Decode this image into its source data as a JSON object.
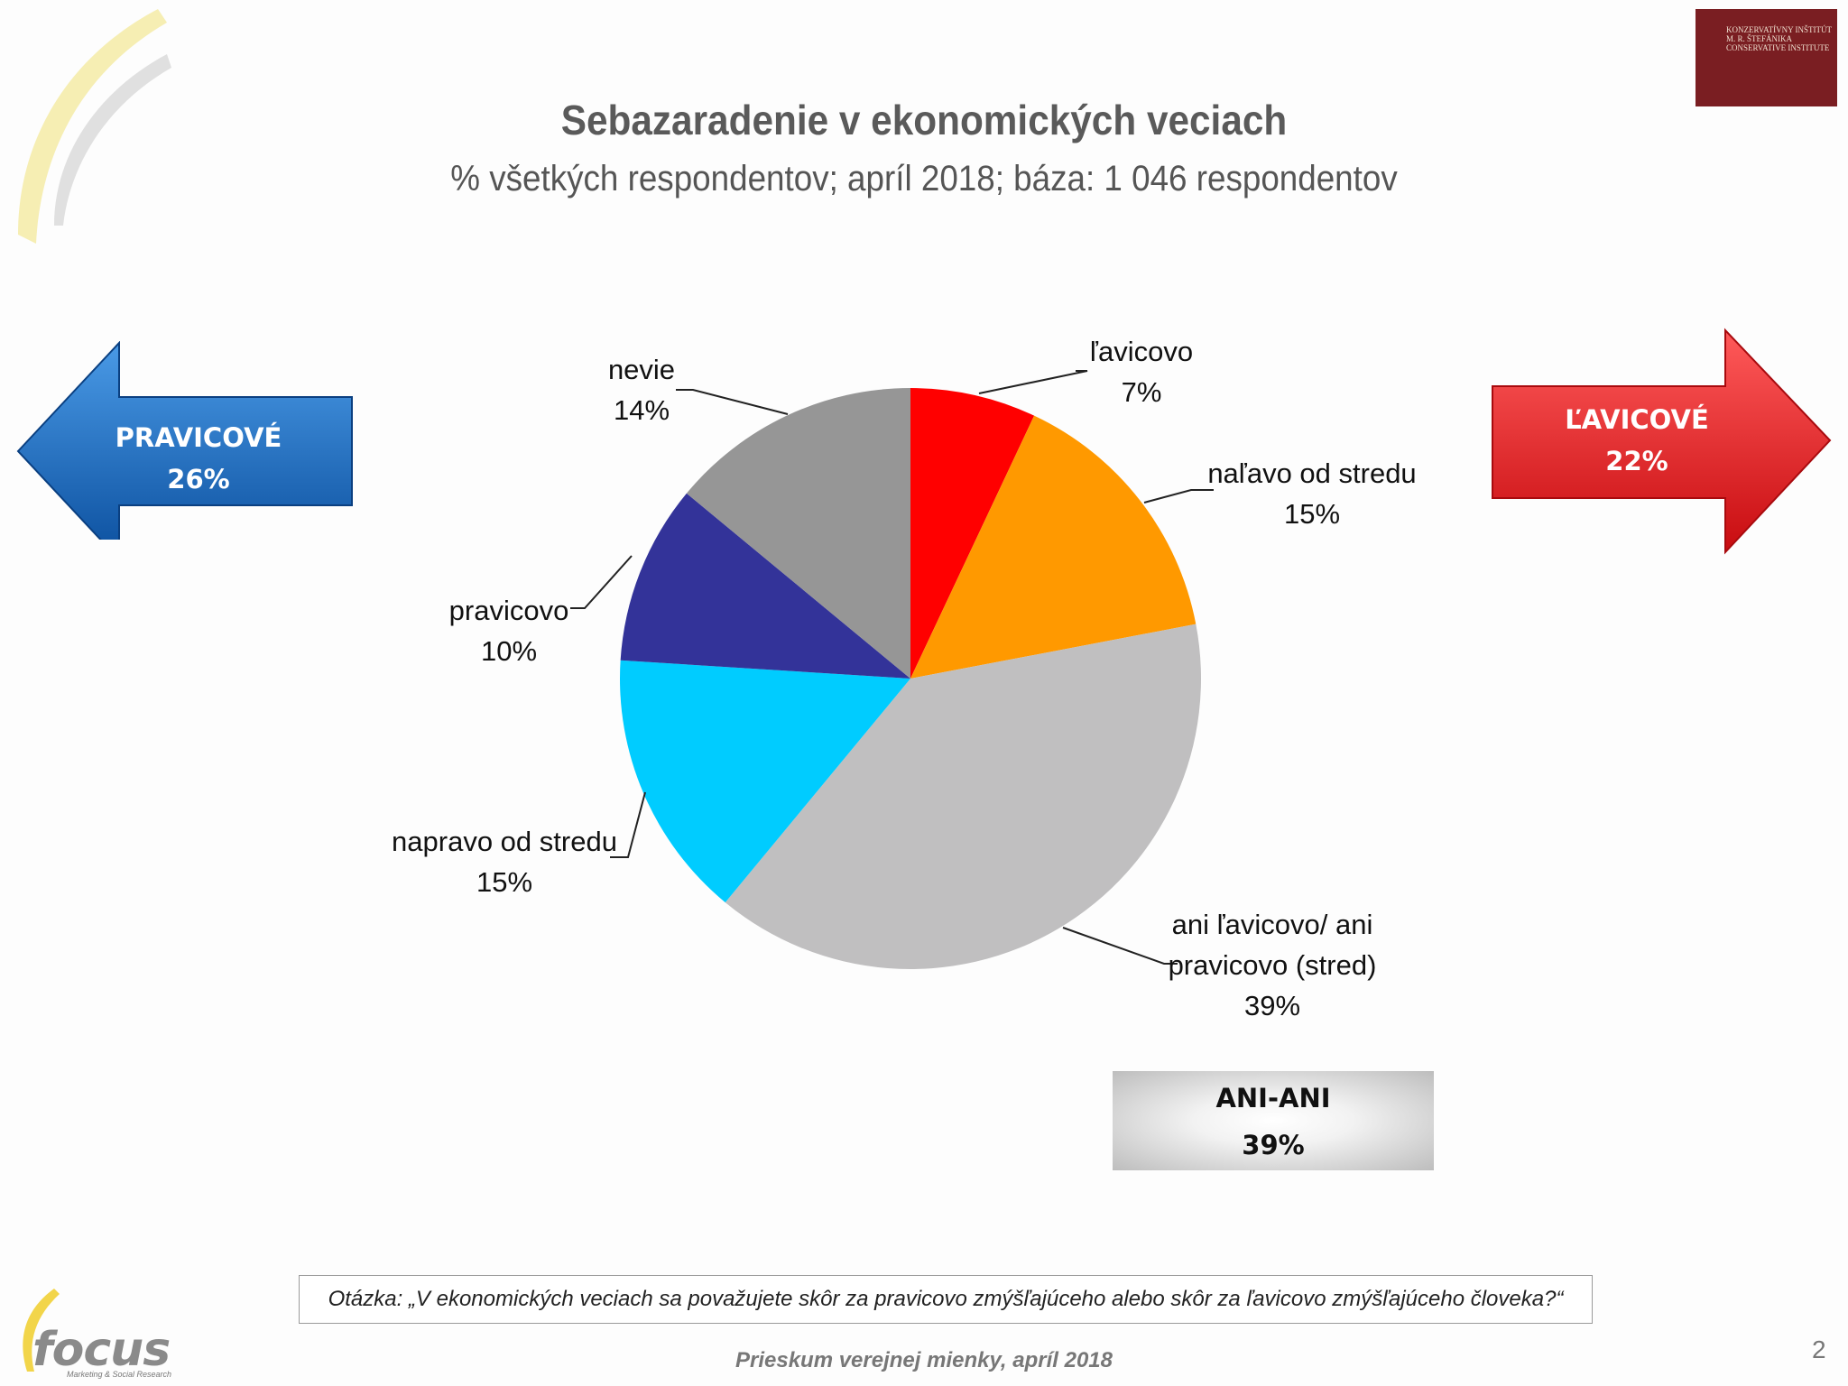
{
  "header": {
    "title": "Sebazaradenie v ekonomických veciach",
    "subtitle": "% všetkých respondentov; apríl 2018; báza: 1 046 respondentov"
  },
  "institute_logo": {
    "text": "KONZERVATÍVNY INŠTITÚT M. R. ŠTEFÁNIKA · CONSERVATIVE INSTITUTE"
  },
  "left_arrow": {
    "label": "PRAVICOVÉ",
    "value": "26%",
    "color": "#1a6fc4"
  },
  "right_arrow": {
    "label": "ĽAVICOVÉ",
    "value": "22%",
    "color": "#e8141b"
  },
  "chart_data": {
    "type": "pie",
    "slices": [
      {
        "label": "ľavicovo",
        "value": 7,
        "color": "#ff0000"
      },
      {
        "label": "naľavo od stredu",
        "value": 15,
        "color": "#ff9900"
      },
      {
        "label": "ani ľavicovo/ ani pravicovo (stred)",
        "value": 39,
        "color": "#c0bfc0"
      },
      {
        "label": "napravo od stredu",
        "value": 15,
        "color": "#00ccff"
      },
      {
        "label": "pravicovo",
        "value": 10,
        "color": "#333399"
      },
      {
        "label": "nevie",
        "value": 14,
        "color": "#969696"
      }
    ]
  },
  "summary_box": {
    "label": "ANI-ANI",
    "value": "39%"
  },
  "question": "Otázka: „V ekonomických veciach sa považujete skôr za pravicovo zmýšľajúceho alebo skôr za ľavicovo zmýšľajúceho človeka?“",
  "footer": "Prieskum verejnej mienky, apríl 2018",
  "page_number": "2",
  "focus_logo": {
    "word": "focus",
    "tagline": "Marketing & Social Research"
  }
}
